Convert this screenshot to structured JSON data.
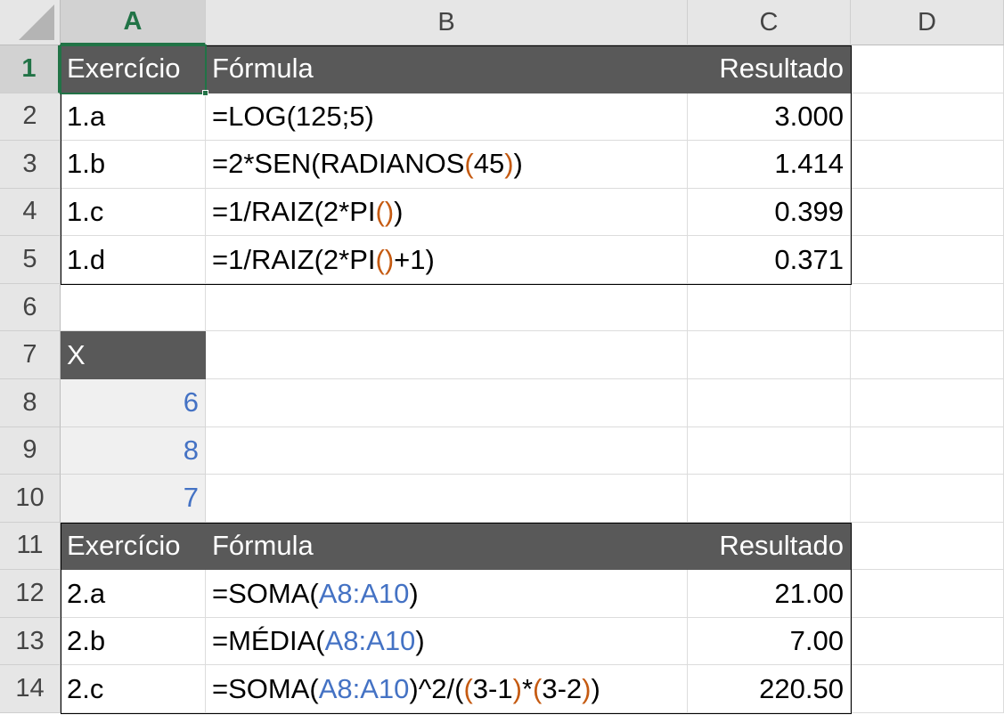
{
  "columns": [
    "A",
    "B",
    "C",
    "D"
  ],
  "rows": [
    "1",
    "2",
    "3",
    "4",
    "5",
    "6",
    "7",
    "8",
    "9",
    "10",
    "11",
    "12",
    "13",
    "14"
  ],
  "selected": {
    "column": "A",
    "row": "1"
  },
  "colors": {
    "header_fill": "#595959",
    "header_text": "#ffffff",
    "cell_reference": "#4472c4",
    "parenthesis_highlight": "#c55a11",
    "selection_green": "#217346",
    "input_cell_fill": "#f0f0f0"
  },
  "table1": {
    "header": {
      "exercise": "Exercício",
      "formula": "Fórmula",
      "result": "Resultado"
    },
    "rows": [
      {
        "exercise": "1.a",
        "formula": [
          {
            "t": "=LOG(125;5)",
            "k": "plain"
          }
        ],
        "result": "3.000"
      },
      {
        "exercise": "1.b",
        "formula": [
          {
            "t": "=2*SEN(RADIANOS",
            "k": "plain"
          },
          {
            "t": "(",
            "k": "paren"
          },
          {
            "t": "45",
            "k": "plain"
          },
          {
            "t": ")",
            "k": "paren"
          },
          {
            "t": ")",
            "k": "plain"
          }
        ],
        "result": "1.414"
      },
      {
        "exercise": "1.c",
        "formula": [
          {
            "t": "=1/RAIZ(2*PI",
            "k": "plain"
          },
          {
            "t": "()",
            "k": "paren"
          },
          {
            "t": ")",
            "k": "plain"
          }
        ],
        "result": "0.399"
      },
      {
        "exercise": "1.d",
        "formula": [
          {
            "t": "=1/RAIZ(2*PI",
            "k": "plain"
          },
          {
            "t": "()",
            "k": "paren"
          },
          {
            "t": "+1)",
            "k": "plain"
          }
        ],
        "result": "0.371"
      }
    ]
  },
  "x_table": {
    "header": "X",
    "values": [
      "6",
      "8",
      "7"
    ]
  },
  "table2": {
    "header": {
      "exercise": "Exercício",
      "formula": "Fórmula",
      "result": "Resultado"
    },
    "rows": [
      {
        "exercise": "2.a",
        "formula": [
          {
            "t": "=SOMA(",
            "k": "plain"
          },
          {
            "t": "A8:A10",
            "k": "ref"
          },
          {
            "t": ")",
            "k": "plain"
          }
        ],
        "result": "21.00"
      },
      {
        "exercise": "2.b",
        "formula": [
          {
            "t": "=MÉDIA(",
            "k": "plain"
          },
          {
            "t": "A8:A10",
            "k": "ref"
          },
          {
            "t": ")",
            "k": "plain"
          }
        ],
        "result": "7.00"
      },
      {
        "exercise": "2.c",
        "formula": [
          {
            "t": "=SOMA(",
            "k": "plain"
          },
          {
            "t": "A8:A10",
            "k": "ref"
          },
          {
            "t": ")^2/(",
            "k": "plain"
          },
          {
            "t": "(",
            "k": "paren"
          },
          {
            "t": "3-1",
            "k": "plain"
          },
          {
            "t": ")",
            "k": "paren"
          },
          {
            "t": "*",
            "k": "plain"
          },
          {
            "t": "(",
            "k": "paren"
          },
          {
            "t": "3-2",
            "k": "plain"
          },
          {
            "t": ")",
            "k": "paren"
          },
          {
            "t": ")",
            "k": "plain"
          }
        ],
        "result": "220.50"
      }
    ]
  }
}
